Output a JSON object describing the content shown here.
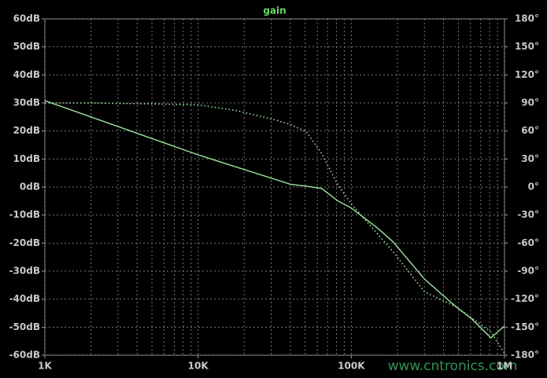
{
  "chart_data": {
    "type": "line",
    "title": "gain",
    "title_color": "#6cd66c",
    "x": [
      1000,
      2000,
      5000,
      10000,
      17600,
      31600,
      40000,
      51000,
      64000,
      82000,
      100000,
      148000,
      187000,
      300000,
      480000,
      610000,
      815000,
      1000000
    ],
    "xlim": [
      1000,
      1000000
    ],
    "xscale": "log",
    "xticks": [
      {
        "value": 1000,
        "label": "1K"
      },
      {
        "value": 10000,
        "label": "10K"
      },
      {
        "value": 100000,
        "label": "100K"
      },
      {
        "value": 1000000,
        "label": "1M"
      }
    ],
    "ylim": [
      -60,
      60
    ],
    "yticks": [
      {
        "value": 60,
        "label": "60dB"
      },
      {
        "value": 50,
        "label": "50dB"
      },
      {
        "value": 40,
        "label": "40dB"
      },
      {
        "value": 30,
        "label": "30dB"
      },
      {
        "value": 20,
        "label": "20dB"
      },
      {
        "value": 10,
        "label": "10dB"
      },
      {
        "value": 0,
        "label": "0dB"
      },
      {
        "value": -10,
        "label": "-10dB"
      },
      {
        "value": -20,
        "label": "-20dB"
      },
      {
        "value": -30,
        "label": "-30dB"
      },
      {
        "value": -40,
        "label": "-40dB"
      },
      {
        "value": -50,
        "label": "-50dB"
      },
      {
        "value": -60,
        "label": "-60dB"
      }
    ],
    "y2lim": [
      -180,
      180
    ],
    "y2ticks": [
      {
        "value": 180,
        "label": "180°"
      },
      {
        "value": 150,
        "label": "150°"
      },
      {
        "value": 120,
        "label": "120°"
      },
      {
        "value": 90,
        "label": "90°"
      },
      {
        "value": 60,
        "label": "60°"
      },
      {
        "value": 30,
        "label": "30°"
      },
      {
        "value": 0,
        "label": "0°"
      },
      {
        "value": -30,
        "label": "-30°"
      },
      {
        "value": -60,
        "label": "-60°"
      },
      {
        "value": -90,
        "label": "-90°"
      },
      {
        "value": -120,
        "label": "-120°"
      },
      {
        "value": -150,
        "label": "-150°"
      },
      {
        "value": -180,
        "label": "-180°"
      }
    ],
    "grid": true,
    "series": [
      {
        "color": "#9fe39f",
        "style": "solid",
        "values": [
          30.8,
          25,
          17.3,
          11.5,
          7.2,
          2.8,
          1.0,
          0.3,
          -0.5,
          -5,
          -7.5,
          -14.6,
          -19.5,
          -32.8,
          -42.6,
          -47,
          -53.8,
          -49.6
        ]
      },
      {
        "color": "#9fe39f",
        "style": "dotted",
        "axis": "y2",
        "values": [
          90,
          90,
          89,
          88,
          82,
          72,
          67,
          59,
          36,
          2,
          -18,
          -50,
          -69,
          -112,
          -128,
          -140,
          -155,
          -178
        ]
      }
    ]
  },
  "watermark": "www.cntronics.com"
}
